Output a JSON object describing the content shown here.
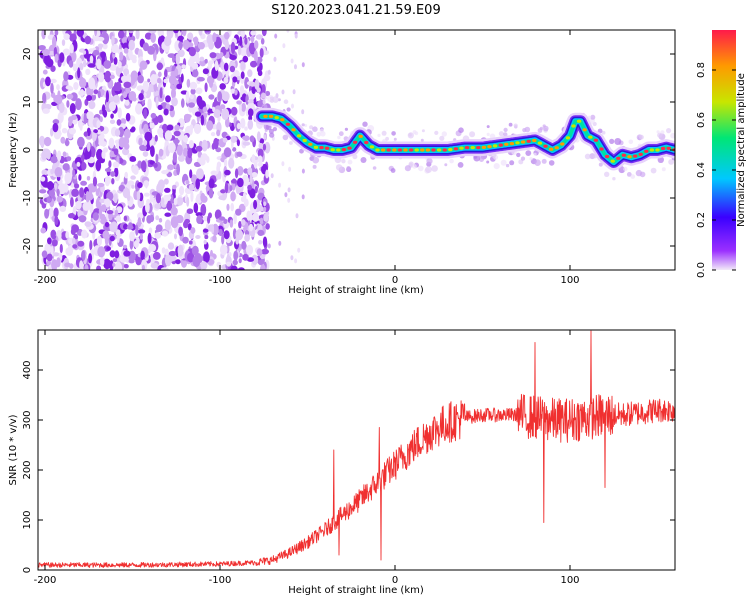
{
  "title": "S120.2023.041.21.59.E09",
  "chart_data": [
    {
      "type": "heatmap",
      "xlabel": "Height of straight line (km)",
      "ylabel": "Frequency (Hz)",
      "xlim": [
        -204,
        160
      ],
      "ylim": [
        -25,
        25
      ],
      "x_ticks": [
        -200,
        -100,
        0,
        100
      ],
      "y_ticks": [
        -20,
        -10,
        0,
        10,
        20
      ],
      "colorbar": {
        "label": "Normalized spectral amplitude",
        "range": [
          0.0,
          0.96
        ],
        "ticks": [
          "0.0",
          "0.2",
          "0.4",
          "0.6",
          "0.8"
        ],
        "colors": [
          "#f2eaf8",
          "#9b30ff",
          "#3a00ff",
          "#00c8ff",
          "#00e676",
          "#c8e600",
          "#ff9a00",
          "#ff1a4a"
        ]
      },
      "noise_region_x": [
        -204,
        -75
      ],
      "ridge": {
        "name": "",
        "x": [
          -76,
          -70,
          -65,
          -60,
          -55,
          -50,
          -45,
          -40,
          -35,
          -30,
          -25,
          -20,
          -15,
          -10,
          -5,
          0,
          10,
          20,
          30,
          40,
          50,
          60,
          70,
          80,
          85,
          90,
          95,
          100,
          103,
          106,
          110,
          115,
          120,
          125,
          130,
          135,
          140,
          145,
          150,
          155,
          160
        ],
        "y": [
          7,
          7,
          6.5,
          5,
          3,
          1.5,
          0.5,
          0.5,
          0,
          0,
          0.5,
          3,
          1,
          0,
          0,
          0,
          0,
          0,
          0,
          0.5,
          0.5,
          1,
          1.5,
          2,
          1,
          0,
          1,
          3,
          6,
          6,
          3,
          2,
          -1,
          -2.5,
          -1,
          -1.5,
          -1,
          0,
          0,
          0.5,
          0
        ]
      }
    },
    {
      "type": "line",
      "xlabel": "Height of straight line (km)",
      "ylabel": "SNR (10 * v/v)",
      "xlim": [
        -204,
        160
      ],
      "ylim": [
        0,
        480
      ],
      "x_ticks": [
        -200,
        -100,
        0,
        100
      ],
      "y_ticks": [
        0,
        100,
        200,
        300,
        400
      ],
      "line_color": "#f03030",
      "trend": {
        "x": [
          -204,
          -150,
          -100,
          -80,
          -70,
          -60,
          -50,
          -40,
          -30,
          -20,
          -10,
          0,
          10,
          20,
          30,
          40,
          50,
          60,
          70,
          80,
          90,
          100,
          110,
          120,
          130,
          140,
          150,
          160
        ],
        "y": [
          10,
          10,
          12,
          15,
          20,
          35,
          55,
          80,
          110,
          140,
          175,
          210,
          245,
          275,
          295,
          305,
          310,
          310,
          310,
          305,
          300,
          300,
          305,
          310,
          310,
          315,
          320,
          320
        ]
      },
      "spikes": [
        {
          "x": -35,
          "y": 240
        },
        {
          "x": -32,
          "y": 30
        },
        {
          "x": -9,
          "y": 285
        },
        {
          "x": -8,
          "y": 20
        },
        {
          "x": 80,
          "y": 455
        },
        {
          "x": 85,
          "y": 95
        },
        {
          "x": 112,
          "y": 478
        },
        {
          "x": 120,
          "y": 165
        }
      ]
    }
  ]
}
